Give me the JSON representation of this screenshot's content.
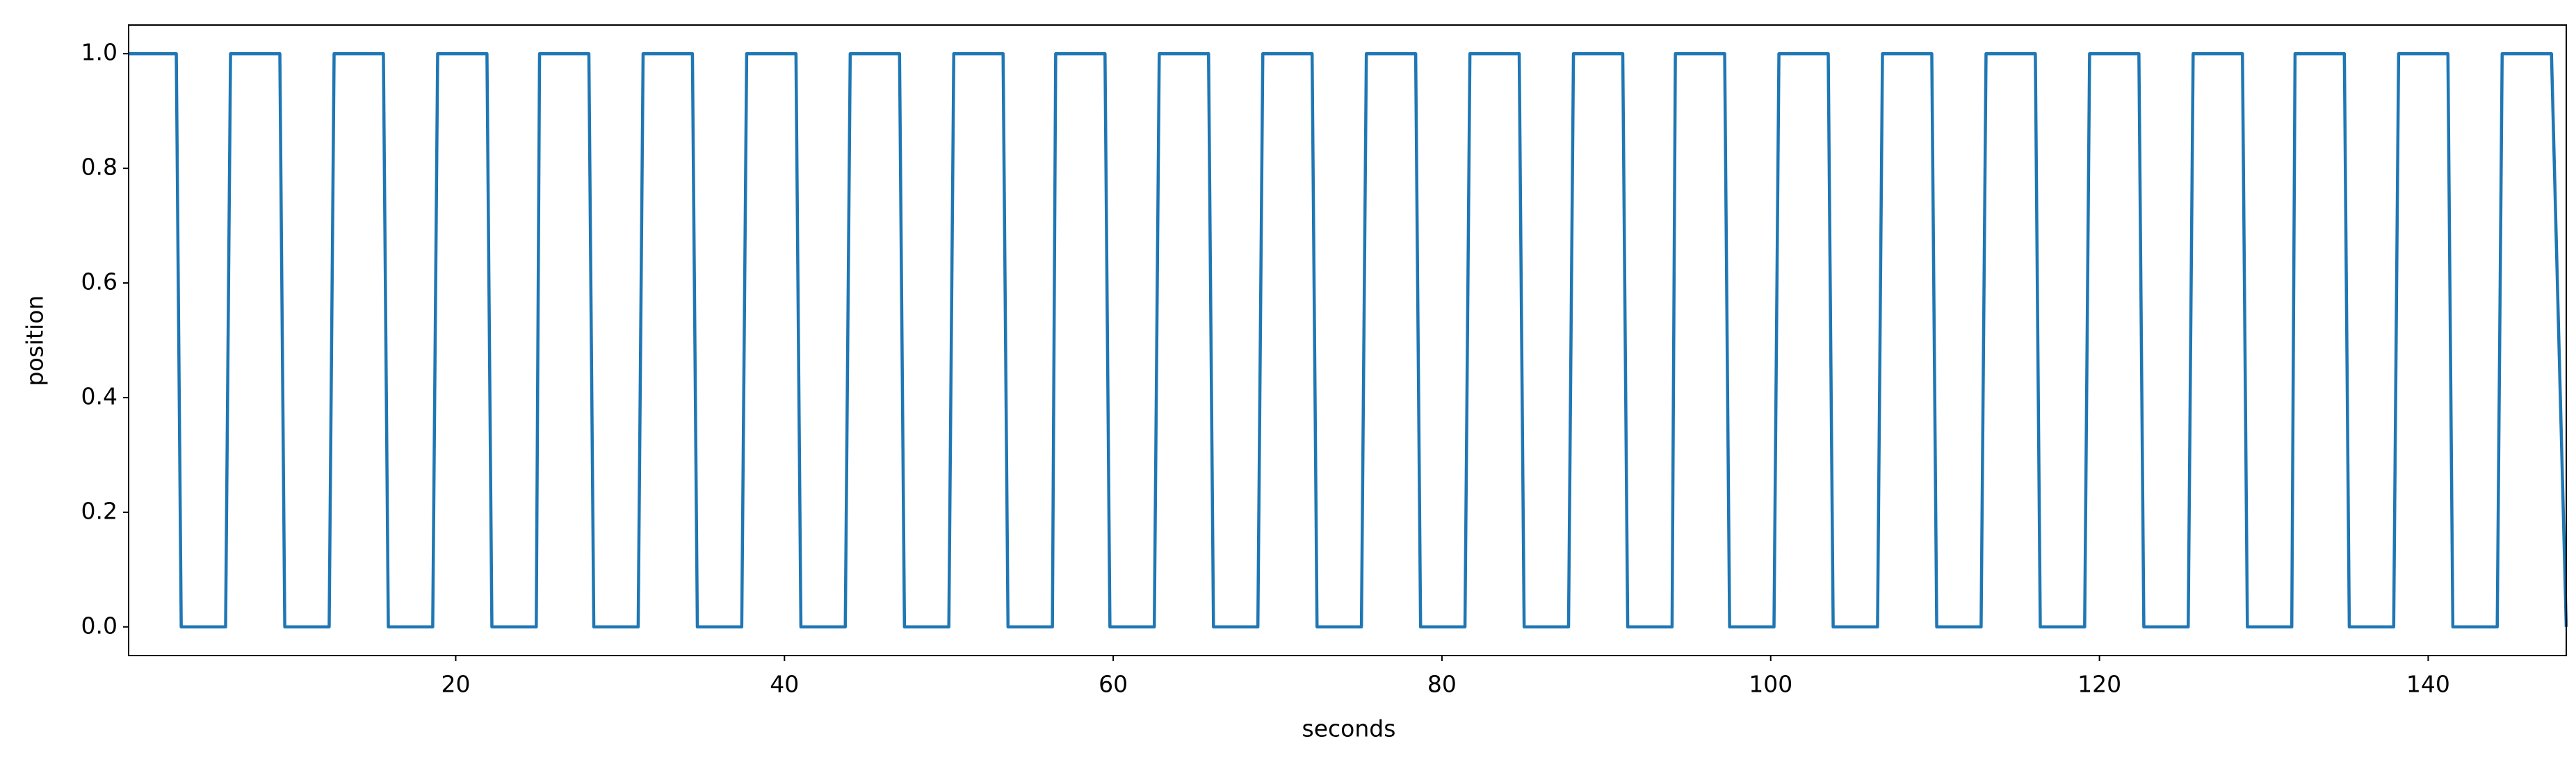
{
  "chart_data": {
    "type": "line",
    "xlabel": "seconds",
    "ylabel": "position",
    "x": [
      0.1,
      3.0,
      3.3,
      6.0,
      6.3,
      9.3,
      9.6,
      12.3,
      12.6,
      15.6,
      15.9,
      18.6,
      18.9,
      21.9,
      22.2,
      24.9,
      25.1,
      28.1,
      28.4,
      31.1,
      31.4,
      34.4,
      34.7,
      37.4,
      37.7,
      40.7,
      41.0,
      43.7,
      44.0,
      47.0,
      47.3,
      50.0,
      50.3,
      53.3,
      53.6,
      56.3,
      56.5,
      59.5,
      59.8,
      62.5,
      62.8,
      65.8,
      66.1,
      68.8,
      69.1,
      72.1,
      72.4,
      75.1,
      75.4,
      78.4,
      78.7,
      81.4,
      81.7,
      84.7,
      85.0,
      87.7,
      88.0,
      91.0,
      91.3,
      94.0,
      94.2,
      97.2,
      97.5,
      100.2,
      100.5,
      103.5,
      103.8,
      106.5,
      106.8,
      109.8,
      110.1,
      112.8,
      113.1,
      116.1,
      116.4,
      119.1,
      119.4,
      122.4,
      122.7,
      125.4,
      125.7,
      128.7,
      129.0,
      131.7,
      131.9,
      134.9,
      135.2,
      137.9,
      138.2,
      141.2,
      141.5,
      144.2,
      144.5,
      147.5,
      148.4
    ],
    "series": [
      {
        "color": "#1f77b4",
        "values": [
          1,
          1,
          0,
          0,
          1,
          1,
          0,
          0,
          1,
          1,
          0,
          0,
          1,
          1,
          0,
          0,
          1,
          1,
          0,
          0,
          1,
          1,
          0,
          0,
          1,
          1,
          0,
          0,
          1,
          1,
          0,
          0,
          1,
          1,
          0,
          0,
          1,
          1,
          0,
          0,
          1,
          1,
          0,
          0,
          1,
          1,
          0,
          0,
          1,
          1,
          0,
          0,
          1,
          1,
          0,
          0,
          1,
          1,
          0,
          0,
          1,
          1,
          0,
          0,
          1,
          1,
          0,
          0,
          1,
          1,
          0,
          0,
          1,
          1,
          0,
          0,
          1,
          1,
          0,
          0,
          1,
          1,
          0,
          0,
          1,
          1,
          0,
          0,
          1,
          1,
          0,
          0,
          1,
          1,
          0
        ]
      }
    ],
    "xlim": [
      0.1,
      148.4
    ],
    "ylim": [
      -0.05,
      1.05
    ],
    "xticks": [
      20,
      40,
      60,
      80,
      100,
      120,
      140
    ],
    "yticks": [
      {
        "value": 0,
        "label": "0.0"
      },
      0.2,
      0.4,
      0.6,
      0.8,
      {
        "value": 1,
        "label": "1.0"
      }
    ],
    "grid": false
  }
}
